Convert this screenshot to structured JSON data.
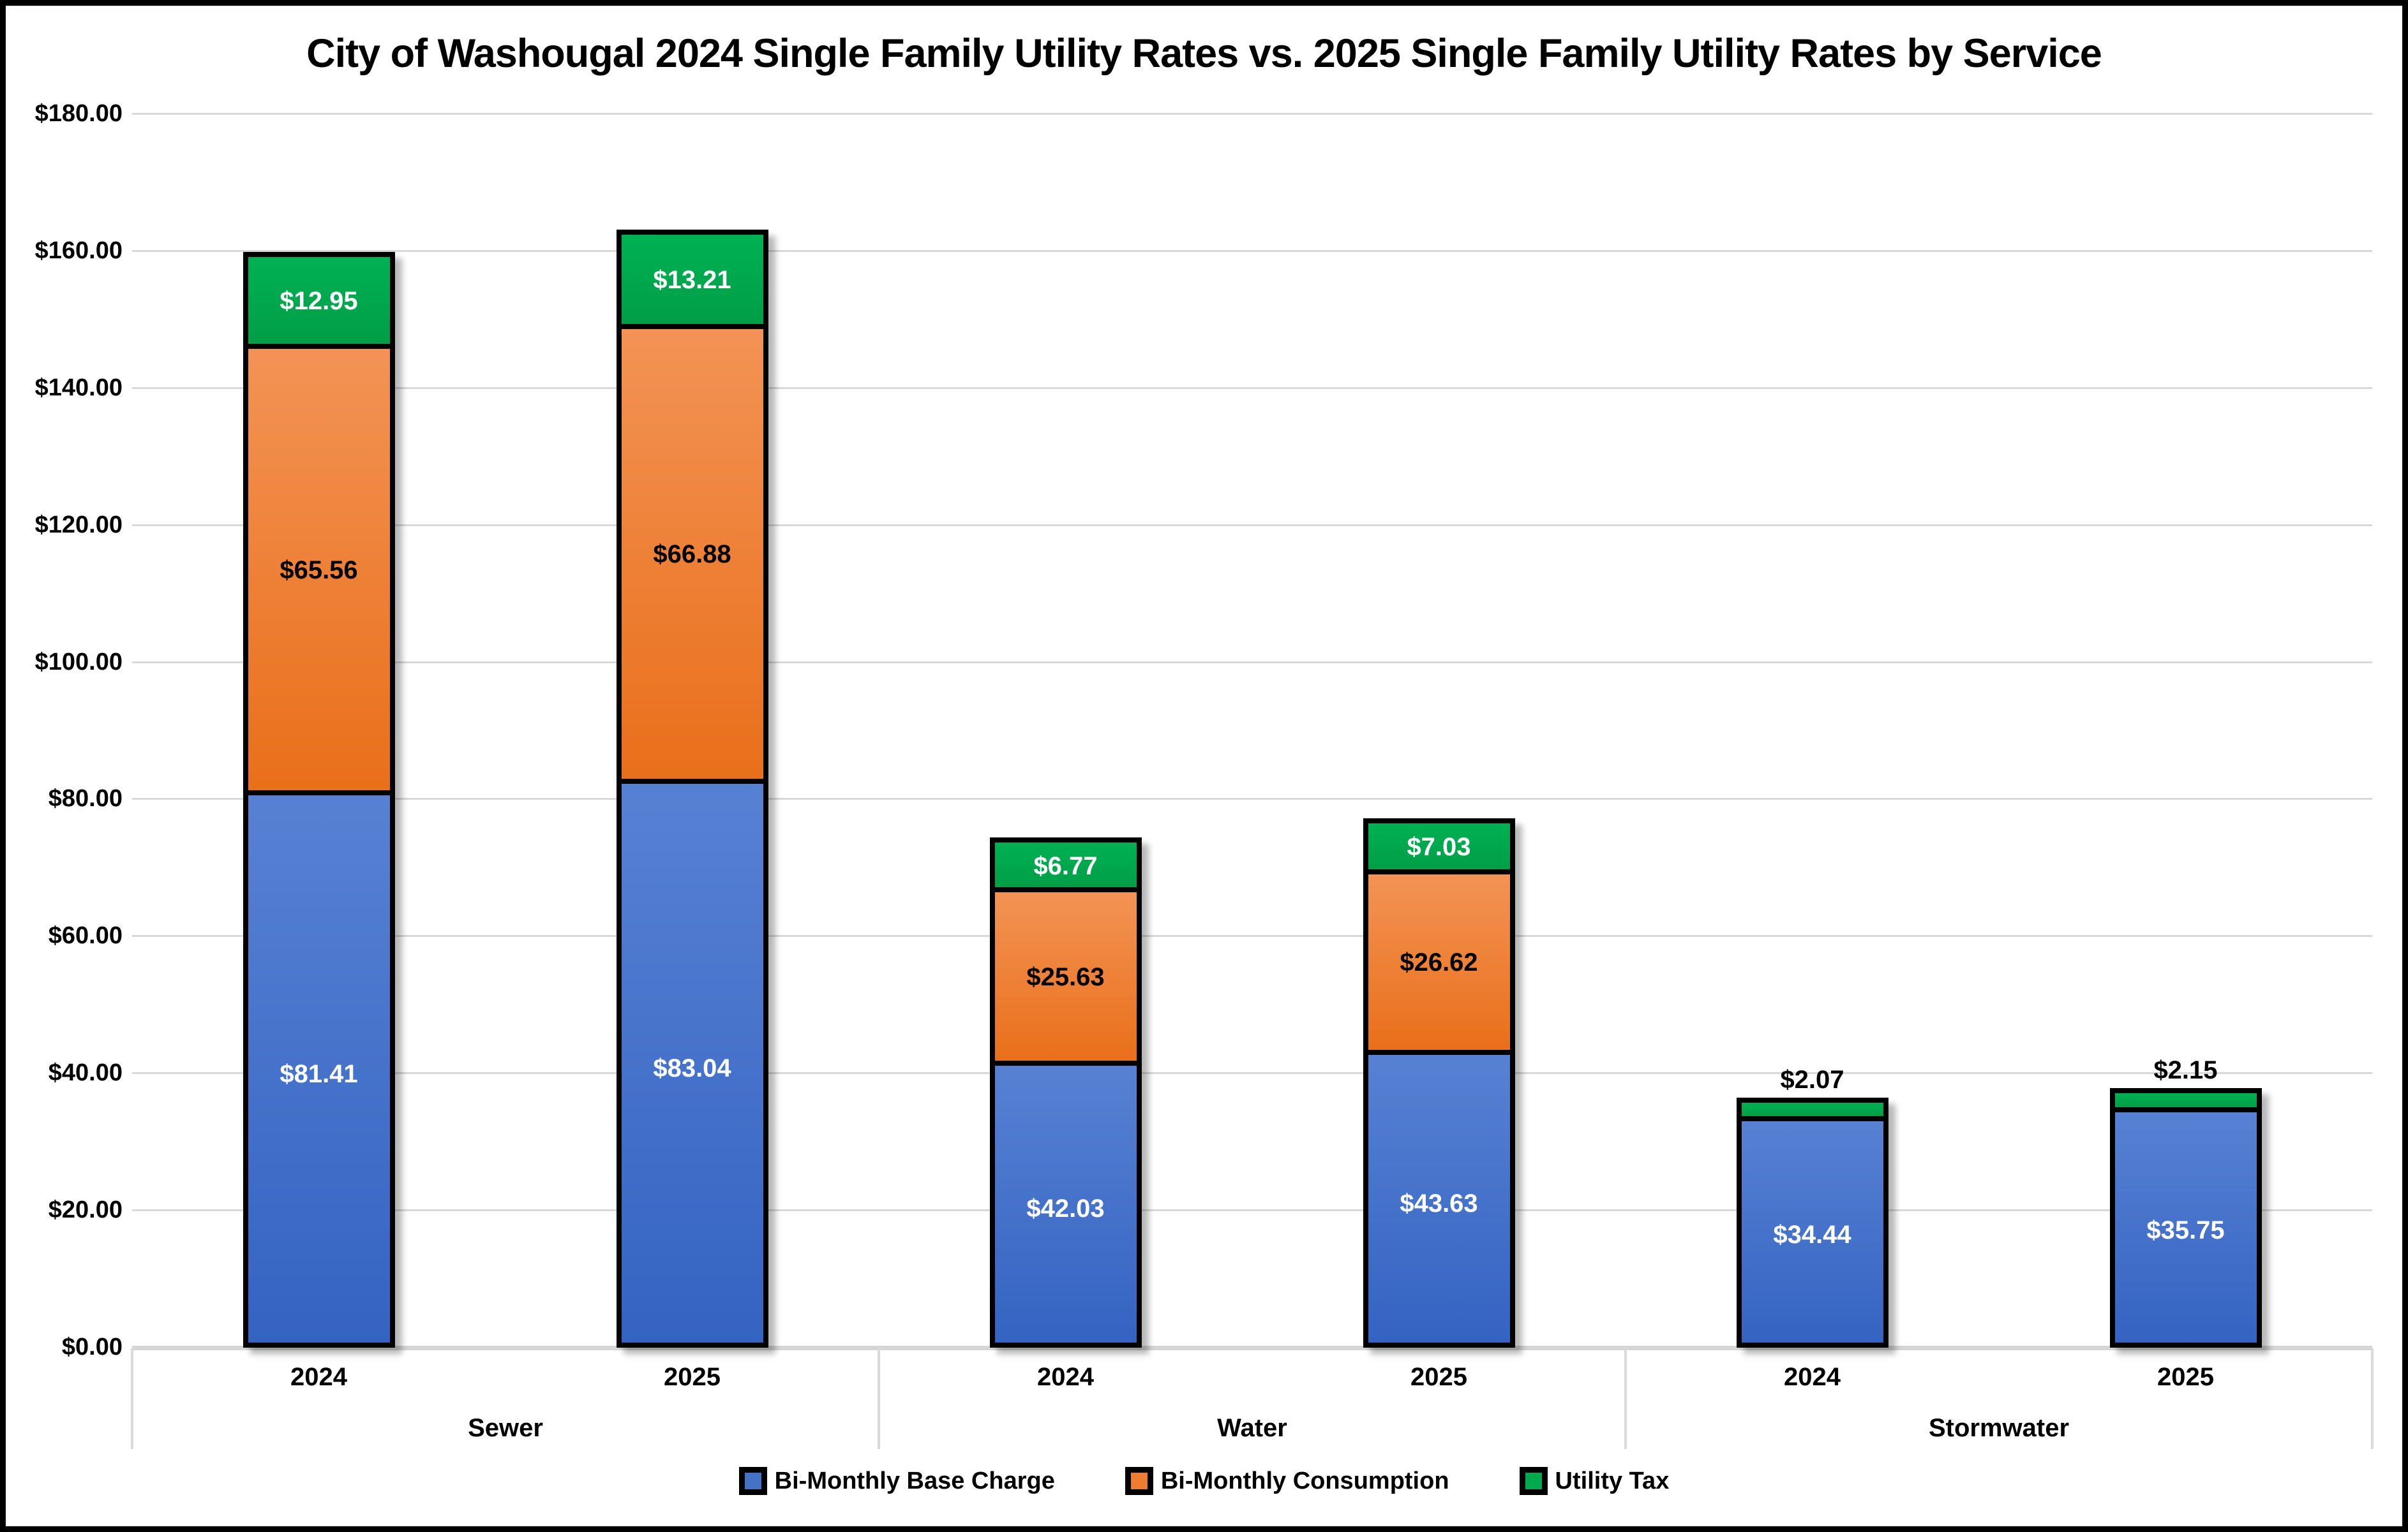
{
  "title": "City of Washougal 2024 Single Family Utility Rates vs. 2025 Single Family Utility Rates by Service",
  "y_axis": {
    "tick_labels": [
      {
        "value": 0,
        "label": "$0.00"
      },
      {
        "value": 20,
        "label": "$20.00"
      },
      {
        "value": 40,
        "label": "$40.00"
      },
      {
        "value": 60,
        "label": "$60.00"
      },
      {
        "value": 80,
        "label": "$80.00"
      },
      {
        "value": 100,
        "label": "$100.00"
      },
      {
        "value": 120,
        "label": "$120.00"
      },
      {
        "value": 140,
        "label": "$140.00"
      },
      {
        "value": 160,
        "label": "$160.00"
      },
      {
        "value": 180,
        "label": "$180.00"
      }
    ]
  },
  "legend": [
    {
      "name": "Bi-Monthly Base Charge",
      "color": "#4472C4"
    },
    {
      "name": "Bi-Monthly Consumption",
      "color": "#ED7D31"
    },
    {
      "name": "Utility Tax",
      "color": "#00A94E"
    }
  ],
  "chart_data": {
    "type": "bar",
    "stacked": true,
    "title": "City of Washougal 2024 Single Family Utility Rates vs. 2025 Single Family Utility Rates by Service",
    "xlabel": "",
    "ylabel": "",
    "ylim": [
      0,
      180
    ],
    "y_tick_step": 20,
    "grid": true,
    "legend_position": "bottom",
    "series": [
      "Bi-Monthly Base Charge",
      "Bi-Monthly Consumption",
      "Utility Tax"
    ],
    "series_colors": {
      "Bi-Monthly Base Charge": "#4472C4",
      "Bi-Monthly Consumption": "#ED7D31",
      "Utility Tax": "#00A94E"
    },
    "groups": [
      {
        "category": "Sewer",
        "bars": [
          {
            "year": "2024",
            "segments": [
              {
                "series": "Bi-Monthly Base Charge",
                "value": 81.41,
                "label": "$81.41"
              },
              {
                "series": "Bi-Monthly Consumption",
                "value": 65.56,
                "label": "$65.56"
              },
              {
                "series": "Utility Tax",
                "value": 12.95,
                "label": "$12.95"
              }
            ]
          },
          {
            "year": "2025",
            "segments": [
              {
                "series": "Bi-Monthly Base Charge",
                "value": 83.04,
                "label": "$83.04"
              },
              {
                "series": "Bi-Monthly Consumption",
                "value": 66.88,
                "label": "$66.88"
              },
              {
                "series": "Utility Tax",
                "value": 13.21,
                "label": "$13.21"
              }
            ]
          }
        ]
      },
      {
        "category": "Water",
        "bars": [
          {
            "year": "2024",
            "segments": [
              {
                "series": "Bi-Monthly Base Charge",
                "value": 42.03,
                "label": "$42.03"
              },
              {
                "series": "Bi-Monthly Consumption",
                "value": 25.63,
                "label": "$25.63"
              },
              {
                "series": "Utility Tax",
                "value": 6.77,
                "label": "$6.77"
              }
            ]
          },
          {
            "year": "2025",
            "segments": [
              {
                "series": "Bi-Monthly Base Charge",
                "value": 43.63,
                "label": "$43.63"
              },
              {
                "series": "Bi-Monthly Consumption",
                "value": 26.62,
                "label": "$26.62"
              },
              {
                "series": "Utility Tax",
                "value": 7.03,
                "label": "$7.03"
              }
            ]
          }
        ]
      },
      {
        "category": "Stormwater",
        "bars": [
          {
            "year": "2024",
            "segments": [
              {
                "series": "Bi-Monthly Base Charge",
                "value": 34.44,
                "label": "$34.44"
              },
              {
                "series": "Utility Tax",
                "value": 2.07,
                "label": "$2.07"
              }
            ]
          },
          {
            "year": "2025",
            "segments": [
              {
                "series": "Bi-Monthly Base Charge",
                "value": 35.75,
                "label": "$35.75"
              },
              {
                "series": "Utility Tax",
                "value": 2.15,
                "label": "$2.15"
              }
            ]
          }
        ]
      }
    ]
  }
}
